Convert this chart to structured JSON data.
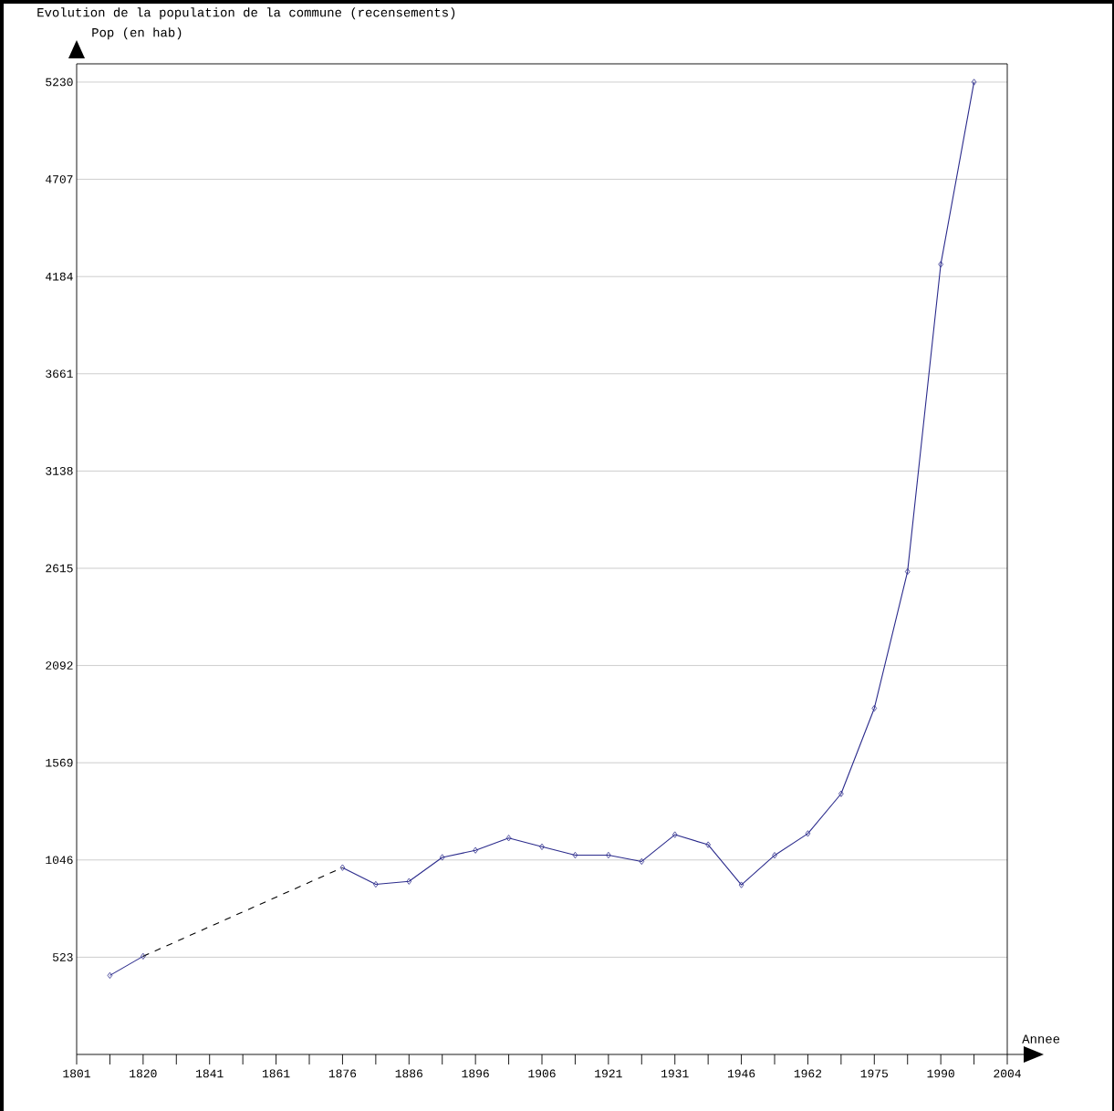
{
  "chart_data": {
    "type": "line",
    "title": "Evolution de la population de la commune (recensements)",
    "xlabel": "Annee",
    "ylabel": "Pop (en hab)",
    "categories": [
      "1801",
      null,
      "1820",
      null,
      "1841",
      null,
      "1861",
      null,
      "1876",
      null,
      "1886",
      null,
      "1896",
      null,
      "1906",
      null,
      "1921",
      null,
      "1931",
      null,
      "1946",
      null,
      "1962",
      null,
      "1975",
      null,
      "1990",
      null,
      "2004"
    ],
    "series": [
      {
        "color": "#2b2b8c",
        "values": [
          null,
          425,
          528,
          null,
          null,
          null,
          null,
          null,
          null,
          null,
          null,
          null,
          null,
          null,
          null,
          null,
          null,
          null,
          null,
          null,
          null,
          null,
          null,
          null,
          null,
          null,
          null,
          null,
          null
        ]
      },
      {
        "color": "#2b2b8c",
        "values": [
          null,
          null,
          null,
          null,
          null,
          null,
          null,
          null,
          1005,
          915,
          931,
          1060,
          1098,
          1164,
          1117,
          1072,
          1072,
          1038,
          1182,
          1128,
          912,
          1071,
          1188,
          1402,
          1862,
          2597,
          4250,
          5230,
          null
        ]
      },
      {
        "color": "#000000",
        "line_style": "dashed",
        "marker": "none",
        "values": [
          null,
          null,
          528,
          null,
          null,
          null,
          null,
          null,
          1005,
          null,
          null,
          null,
          null,
          null,
          null,
          null,
          null,
          null,
          null,
          null,
          null,
          null,
          null,
          null,
          null,
          null,
          null,
          null,
          null
        ]
      }
    ],
    "ylim": [
      0,
      5328
    ],
    "yticks": [
      523,
      1046,
      1569,
      2092,
      2615,
      3138,
      3661,
      4184,
      4707,
      5230
    ],
    "grid": "y",
    "marker": "diamond",
    "line_style": "solid"
  }
}
